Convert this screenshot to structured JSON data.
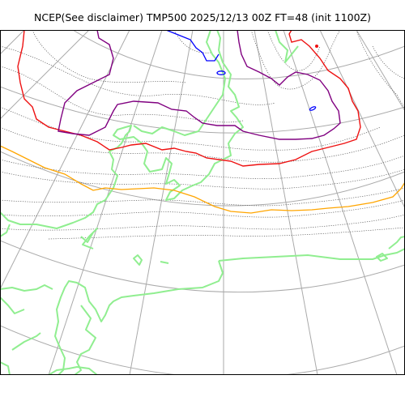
{
  "title": "NCEP(See disclaimer) TMP500 2025/12/13 00Z FT=48 (init 1100Z)",
  "colors": {
    "background": "#ffffff",
    "graticule": "#aaaaaa",
    "coastline": "#90ee90",
    "isotherm": "#555555",
    "contour_red": "#ee1111",
    "contour_purple": "#800080",
    "contour_orange": "#ffa500",
    "contour_blue": "#0000ff",
    "frame": "#000000"
  }
}
